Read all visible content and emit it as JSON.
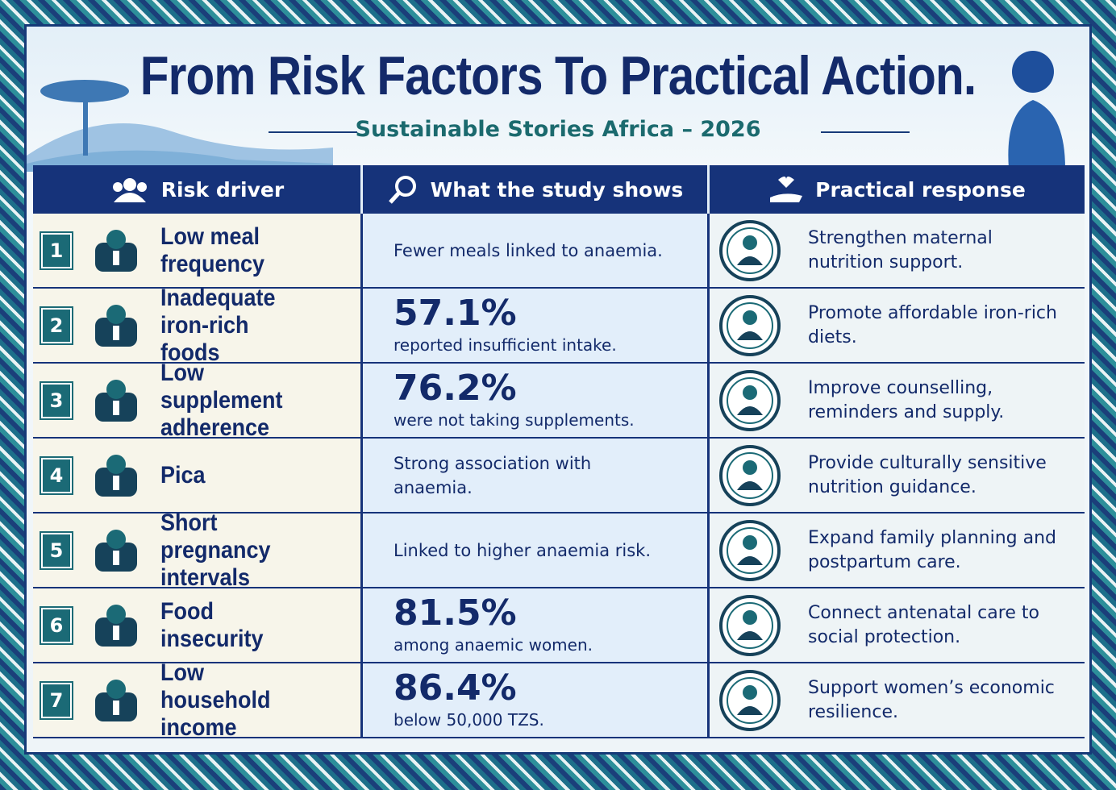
{
  "header": {
    "title": "From Risk Factors To Practical Action.",
    "subtitle": "Sustainable Stories Africa – 2026"
  },
  "table": {
    "columns": [
      "Risk driver",
      "What the study shows",
      "Practical response"
    ],
    "rows": [
      {
        "number": "1",
        "driver": "Low meal frequency",
        "finding": {
          "text": "Fewer meals linked to anaemia."
        },
        "response": "Strengthen maternal nutrition support."
      },
      {
        "number": "2",
        "driver": "Inadequate iron-rich foods",
        "finding": {
          "stat": "57.1%",
          "text": "reported insufficient intake."
        },
        "response": "Promote affordable iron-rich diets."
      },
      {
        "number": "3",
        "driver": "Low supplement adherence",
        "finding": {
          "stat": "76.2%",
          "text": "were not taking supplements."
        },
        "response": "Improve counselling, reminders and supply."
      },
      {
        "number": "4",
        "driver": "Pica",
        "finding": {
          "text": "Strong association with anaemia."
        },
        "response": "Provide culturally sensitive nutrition guidance."
      },
      {
        "number": "5",
        "driver": "Short pregnancy intervals",
        "finding": {
          "text": "Linked to higher anaemia risk."
        },
        "response": "Expand family planning and postpartum care."
      },
      {
        "number": "6",
        "driver": "Food insecurity",
        "finding": {
          "stat": "81.5%",
          "text": "among anaemic women."
        },
        "response": "Connect antenatal care to social protection."
      },
      {
        "number": "7",
        "driver": "Low household income",
        "finding": {
          "stat": "86.4%",
          "text": "below 50,000 TZS."
        },
        "response": "Support women’s economic resilience."
      }
    ]
  }
}
